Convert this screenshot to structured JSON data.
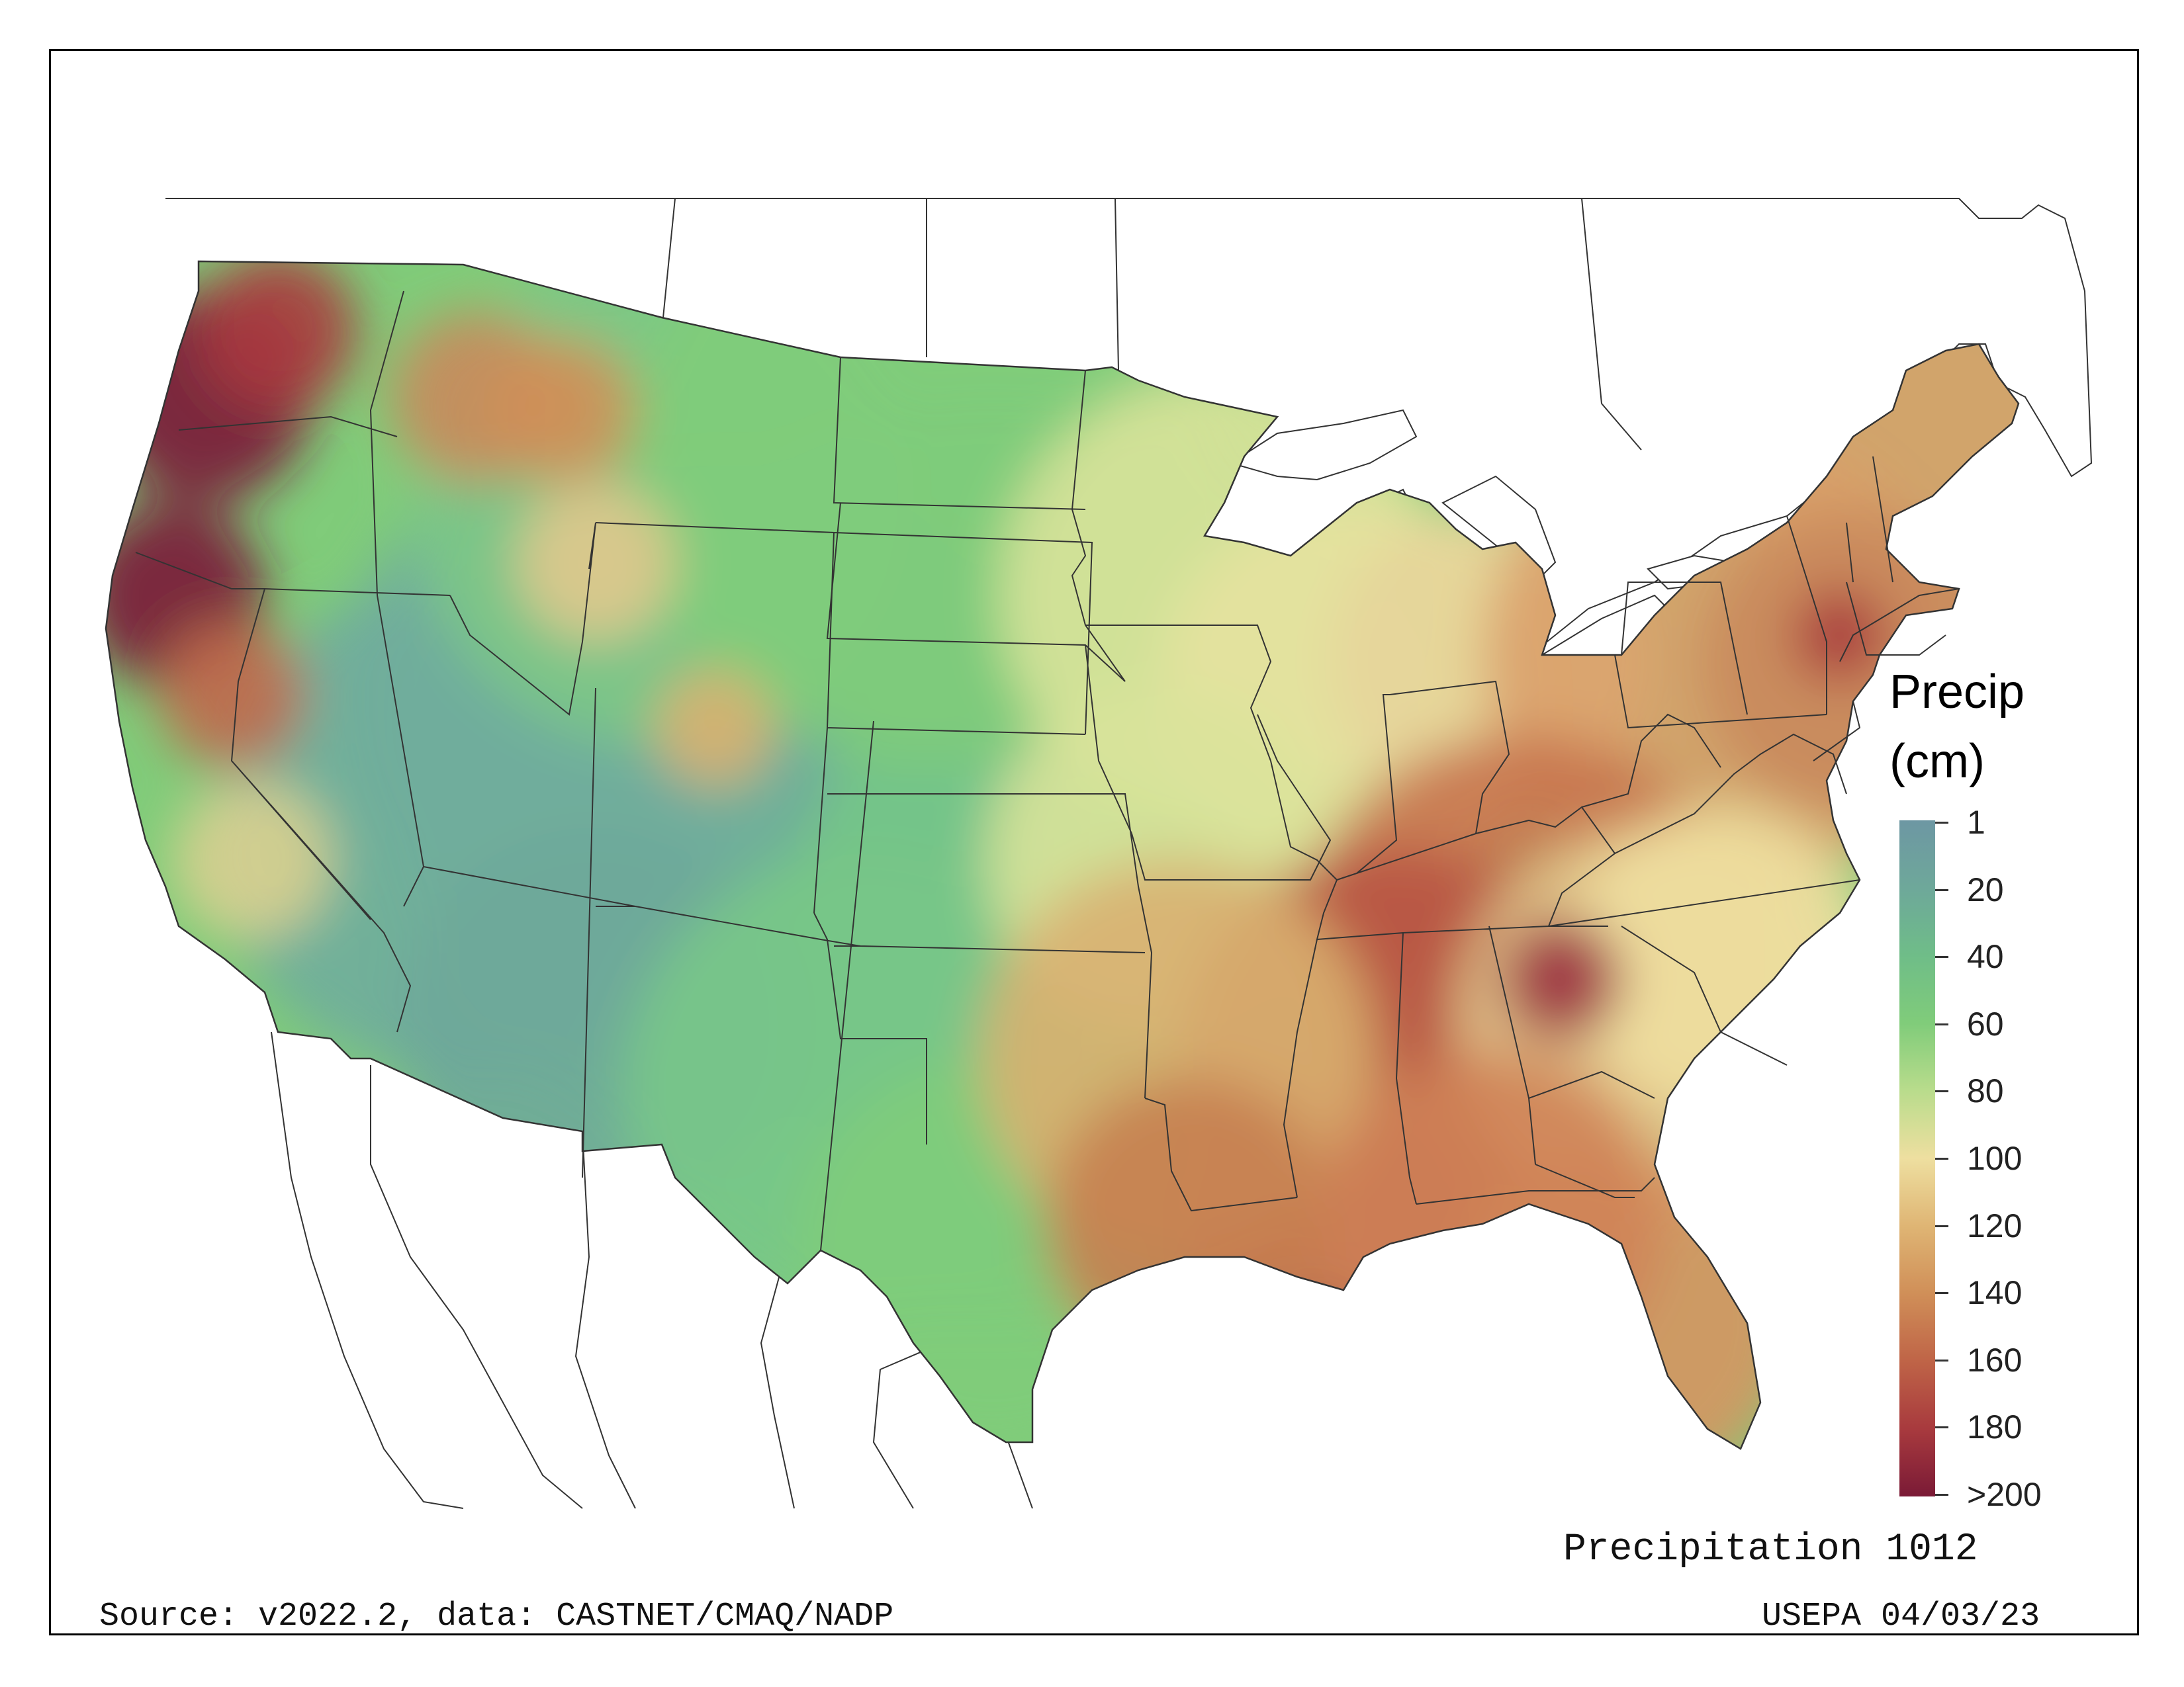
{
  "map": {
    "title": "Precipitation 1012",
    "source": "Source: v2022.2, data: CASTNET/CMAQ/NADP",
    "credit": "USEPA 04/03/23"
  },
  "legend": {
    "title_line1": "Precip",
    "title_line2": "(cm)",
    "ticks": [
      "1",
      "20",
      "40",
      "60",
      "80",
      "100",
      "120",
      "140",
      "160",
      "180",
      ">200"
    ],
    "colors": [
      "#6d97a3",
      "#6ea89a",
      "#6fbd88",
      "#80cc7a",
      "#b9dc8c",
      "#eedfa0",
      "#dfb574",
      "#d08f58",
      "#bf6447",
      "#a83a3e",
      "#7a1a36"
    ]
  },
  "regions": {
    "pacific_northwest_coast": "#7a1a36",
    "cascades": "#a83a3e",
    "great_basin": "#70ad9c",
    "mountain_west": "#74c38a",
    "great_plains": "#80cc7a",
    "midwest": "#d9e39a",
    "northeast": "#d9a06a",
    "southeast": "#cf8356",
    "gulf_coast": "#b85544",
    "florida": "#d59563"
  }
}
